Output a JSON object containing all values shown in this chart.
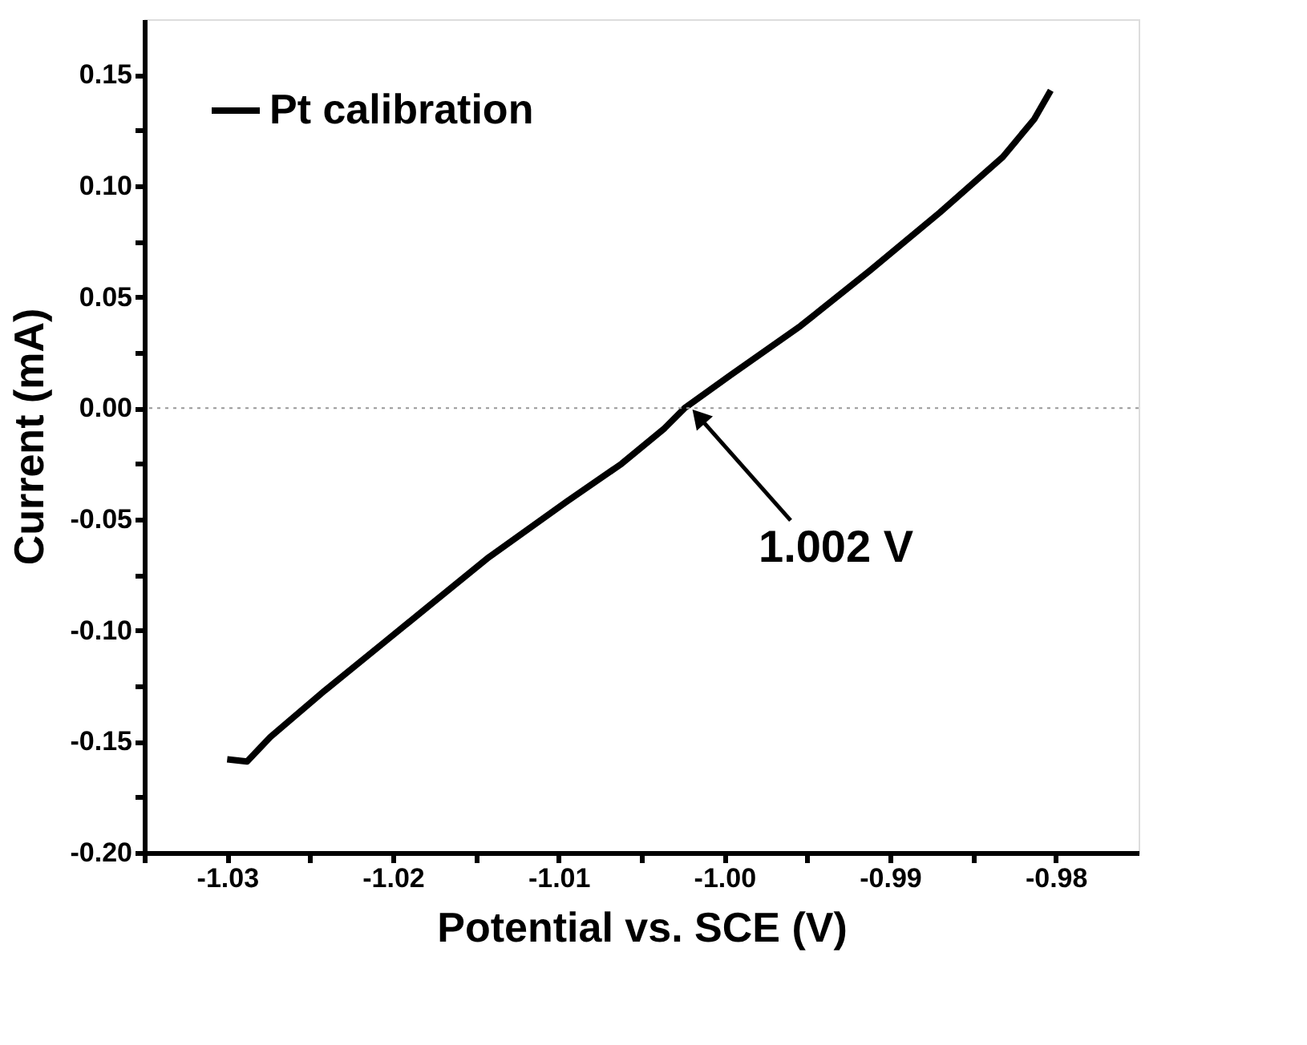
{
  "chart_data": {
    "type": "line",
    "xlabel": "Potential vs. SCE (V)",
    "ylabel": "Current (mA)",
    "x": [
      -1.03,
      -1.0288,
      -1.0274,
      -1.0241,
      -1.0203,
      -1.0142,
      -1.0095,
      -1.0062,
      -1.0036,
      -1.0024,
      -0.9996,
      -0.9954,
      -0.9912,
      -0.987,
      -0.9832,
      -0.9813,
      -0.9803
    ],
    "series": [
      {
        "name": "Pt calibration",
        "color": "#000000",
        "values": [
          -0.158,
          -0.159,
          -0.148,
          -0.127,
          -0.104,
          -0.067,
          -0.042,
          -0.025,
          -0.009,
          0.0,
          0.015,
          0.037,
          0.062,
          0.088,
          0.113,
          0.13,
          0.143
        ]
      }
    ],
    "xlim": [
      -1.035,
      -0.975
    ],
    "xticks": [
      {
        "value": -1.035,
        "label": null
      },
      -1.03,
      {
        "value": -1.025,
        "label": null
      },
      -1.02,
      {
        "value": -1.015,
        "label": null
      },
      -1.01,
      {
        "value": -1.005,
        "label": null
      },
      {
        "value": -1.0,
        "label": "-1.00"
      },
      {
        "value": -0.995,
        "label": null
      },
      -0.99,
      {
        "value": -0.985,
        "label": null
      },
      -0.98
    ],
    "ylim": [
      -0.2,
      0.175
    ],
    "yticks": [
      {
        "value": -0.2,
        "label": "-0.20"
      },
      {
        "value": -0.175,
        "label": null
      },
      -0.15,
      {
        "value": -0.125,
        "label": null
      },
      {
        "value": -0.1,
        "label": "-0.10"
      },
      {
        "value": -0.075,
        "label": null
      },
      -0.05,
      {
        "value": -0.025,
        "label": null
      },
      {
        "value": 0.0,
        "label": "0.00"
      },
      {
        "value": 0.025,
        "label": null
      },
      0.05,
      {
        "value": 0.075,
        "label": null
      },
      {
        "value": 0.1,
        "label": "0.10"
      },
      {
        "value": 0.125,
        "label": null
      },
      0.15
    ],
    "ref_lines": [
      {
        "axis": "y",
        "value": 0.0,
        "color": "#999999",
        "line_style": "dotted"
      }
    ],
    "annotations": [
      {
        "text": "1.002 V",
        "x": -1.002,
        "y": 0.0
      }
    ],
    "legend": "top left",
    "grid": false,
    "marker": "none",
    "line_style": "solid"
  }
}
